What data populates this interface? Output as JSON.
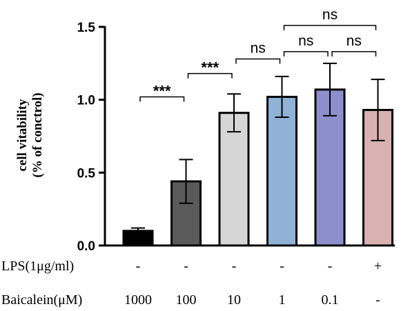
{
  "chart_data": {
    "type": "bar",
    "ylabel_lines": [
      "cell vitability",
      "(% of conctrol)"
    ],
    "ylim": [
      0,
      1.5
    ],
    "yticks": [
      {
        "value": 0.0,
        "label": "0.0"
      },
      {
        "value": 0.5,
        "label": "0.5"
      },
      {
        "value": 1.0,
        "label": "1.0"
      },
      {
        "value": 1.5,
        "label": "1.5"
      }
    ],
    "bars": [
      {
        "value": 0.1,
        "error": 0.02,
        "color": "#000000"
      },
      {
        "value": 0.44,
        "error": 0.15,
        "color": "#5a5a5a"
      },
      {
        "value": 0.91,
        "error": 0.13,
        "color": "#d6d6d6"
      },
      {
        "value": 1.02,
        "error": 0.14,
        "color": "#8fb2d6"
      },
      {
        "value": 1.07,
        "error": 0.18,
        "color": "#8d8fcd"
      },
      {
        "value": 0.93,
        "error": 0.21,
        "color": "#d9b1b1"
      }
    ],
    "treatment_rows": [
      {
        "label": "LPS(1μg/ml)",
        "values": [
          "-",
          "-",
          "-",
          "-",
          "-",
          "+"
        ]
      },
      {
        "label": "Baicalein(μM)",
        "values": [
          "1000",
          "100",
          "10",
          "1",
          "0.1",
          "-"
        ]
      }
    ],
    "comparisons": [
      {
        "from": 0,
        "to": 1,
        "label": "***",
        "level": 1.02
      },
      {
        "from": 1,
        "to": 2,
        "label": "***",
        "level": 1.18
      },
      {
        "from": 2,
        "to": 3,
        "label": "ns",
        "level": 1.28
      },
      {
        "from": 3,
        "to": 4,
        "label": "ns",
        "level": 1.33
      },
      {
        "from": 4,
        "to": 5,
        "label": "ns",
        "level": 1.33
      },
      {
        "from": 3,
        "to": 5,
        "label": "ns",
        "level": 1.51
      }
    ]
  }
}
